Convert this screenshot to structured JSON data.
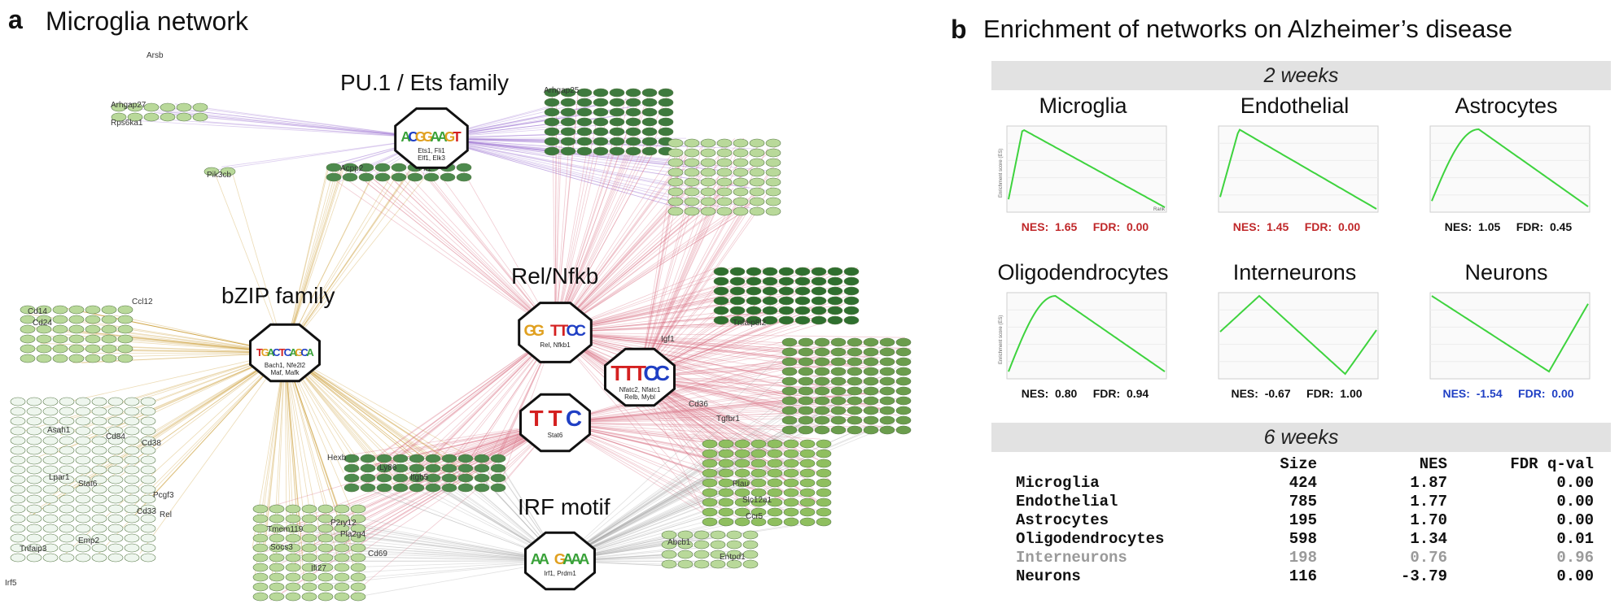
{
  "panel_a": {
    "letter": "a",
    "title": "Microglia network",
    "motifs": [
      {
        "label": "PU.1 / Ets family",
        "logo": "ACGGAAGT",
        "tfs": "Ets1, Fli1 / Elf1, Elk3"
      },
      {
        "label": "bZIP family",
        "logo": "TGACTCAGCA",
        "tfs": "Bach1, Nfe2l2 / Maf, Mafk"
      },
      {
        "label": "Rel/Nfkb",
        "logo": "GG TTCC",
        "tfs": "Rel, Nfkb1"
      },
      {
        "label": "",
        "logo": "TTTCC",
        "tfs": "Nfatc2, Nfatc1 / Relb, Mybl"
      },
      {
        "label": "",
        "logo": "TTC",
        "tfs": "Stat6"
      },
      {
        "label": "IRF motif",
        "logo": "AA GAAA",
        "tfs": "Irf1, Prdm1"
      }
    ],
    "genes": [
      "Arhgap27",
      "Rps6ka1",
      "Arhgap25",
      "Pik3cb",
      "Acpp2",
      "Fli1",
      "Ccl12",
      "Cd14",
      "Cd24",
      "Arsb",
      "Asah1",
      "Cd84",
      "Cd38",
      "Pcgf3",
      "Lpar1",
      "Stat6",
      "Cd33",
      "Rel",
      "Emp2",
      "Tnfaip3",
      "Irf5",
      "Tnfaip8l2",
      "Igf1",
      "Cd36",
      "Tgfbr1",
      "Hexb",
      "Ly86",
      "Itgb5",
      "Plau",
      "Slc12a1",
      "Ccr5",
      "Tmem119",
      "P2ry12",
      "Pla2g4",
      "Entpd1",
      "Abcb1",
      "Socs3",
      "Cd69",
      "Ifi27"
    ]
  },
  "panel_b": {
    "letter": "b",
    "title": "Enrichment of networks on Alzheimer’s disease",
    "band_2w": "2 weeks",
    "band_6w": "6 weeks",
    "y_axis_label": "Enrichment score (ES)",
    "x_axis_label": "Rank",
    "colors": {
      "curve": "#3ed33e",
      "pos_sig": "#c0282a",
      "neg_sig": "#1f3fc4",
      "ns": "#111111",
      "faded": "#9a9a9a"
    },
    "gsea": [
      {
        "name": "Microglia",
        "nes": "1.65",
        "fdr": "0.00",
        "status": "pos_sig"
      },
      {
        "name": "Endothelial",
        "nes": "1.45",
        "fdr": "0.00",
        "status": "pos_sig"
      },
      {
        "name": "Astrocytes",
        "nes": "1.05",
        "fdr": "0.45",
        "status": "ns"
      },
      {
        "name": "Oligodendrocytes",
        "nes": "0.80",
        "fdr": "0.94",
        "status": "ns"
      },
      {
        "name": "Interneurons",
        "nes": "-0.67",
        "fdr": "1.00",
        "status": "ns"
      },
      {
        "name": "Neurons",
        "nes": "-1.54",
        "fdr": "0.00",
        "status": "neg_sig"
      }
    ],
    "table_headers": [
      "",
      "Size",
      "NES",
      "FDR q-val"
    ],
    "table_rows": [
      {
        "name": "Microglia",
        "size": "424",
        "nes": "1.87",
        "fdr": "0.00",
        "faded": false
      },
      {
        "name": "Endothelial",
        "size": "785",
        "nes": "1.77",
        "fdr": "0.00",
        "faded": false
      },
      {
        "name": "Astrocytes",
        "size": "195",
        "nes": "1.70",
        "fdr": "0.00",
        "faded": false
      },
      {
        "name": "Oligodendrocytes",
        "size": "598",
        "nes": "1.34",
        "fdr": "0.01",
        "faded": false
      },
      {
        "name": "Interneurons",
        "size": "198",
        "nes": "0.76",
        "fdr": "0.96",
        "faded": true
      },
      {
        "name": "Neurons",
        "size": "116",
        "nes": "-3.79",
        "fdr": "0.00",
        "faded": false
      }
    ]
  }
}
